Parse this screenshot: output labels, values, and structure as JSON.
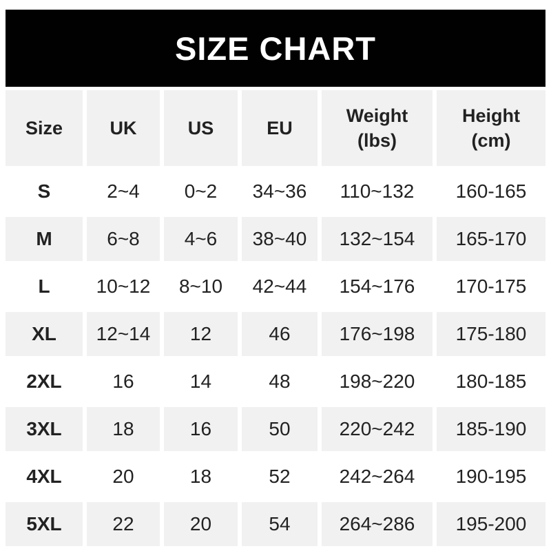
{
  "banner": {
    "title": "SIZE CHART"
  },
  "table": {
    "headers": [
      "Size",
      "UK",
      "US",
      "EU",
      "Weight\n(lbs)",
      "Height\n(cm)"
    ],
    "rows": [
      {
        "size": "S",
        "uk": "2~4",
        "us": "0~2",
        "eu": "34~36",
        "weight_lbs": "110~132",
        "height_cm": "160-165"
      },
      {
        "size": "M",
        "uk": "6~8",
        "us": "4~6",
        "eu": "38~40",
        "weight_lbs": "132~154",
        "height_cm": "165-170"
      },
      {
        "size": "L",
        "uk": "10~12",
        "us": "8~10",
        "eu": "42~44",
        "weight_lbs": "154~176",
        "height_cm": "170-175"
      },
      {
        "size": "XL",
        "uk": "12~14",
        "us": "12",
        "eu": "46",
        "weight_lbs": "176~198",
        "height_cm": "175-180"
      },
      {
        "size": "2XL",
        "uk": "16",
        "us": "14",
        "eu": "48",
        "weight_lbs": "198~220",
        "height_cm": "180-185"
      },
      {
        "size": "3XL",
        "uk": "18",
        "us": "16",
        "eu": "50",
        "weight_lbs": "220~242",
        "height_cm": "185-190"
      },
      {
        "size": "4XL",
        "uk": "20",
        "us": "18",
        "eu": "52",
        "weight_lbs": "242~264",
        "height_cm": "190-195"
      },
      {
        "size": "5XL",
        "uk": "22",
        "us": "20",
        "eu": "54",
        "weight_lbs": "264~286",
        "height_cm": "195-200"
      }
    ]
  },
  "colors": {
    "banner_background": "#010101",
    "banner_text": "#ffffff",
    "alternate_row_background": "#f1f1f1",
    "row_background": "#ffffff",
    "table_text": "#222222"
  }
}
